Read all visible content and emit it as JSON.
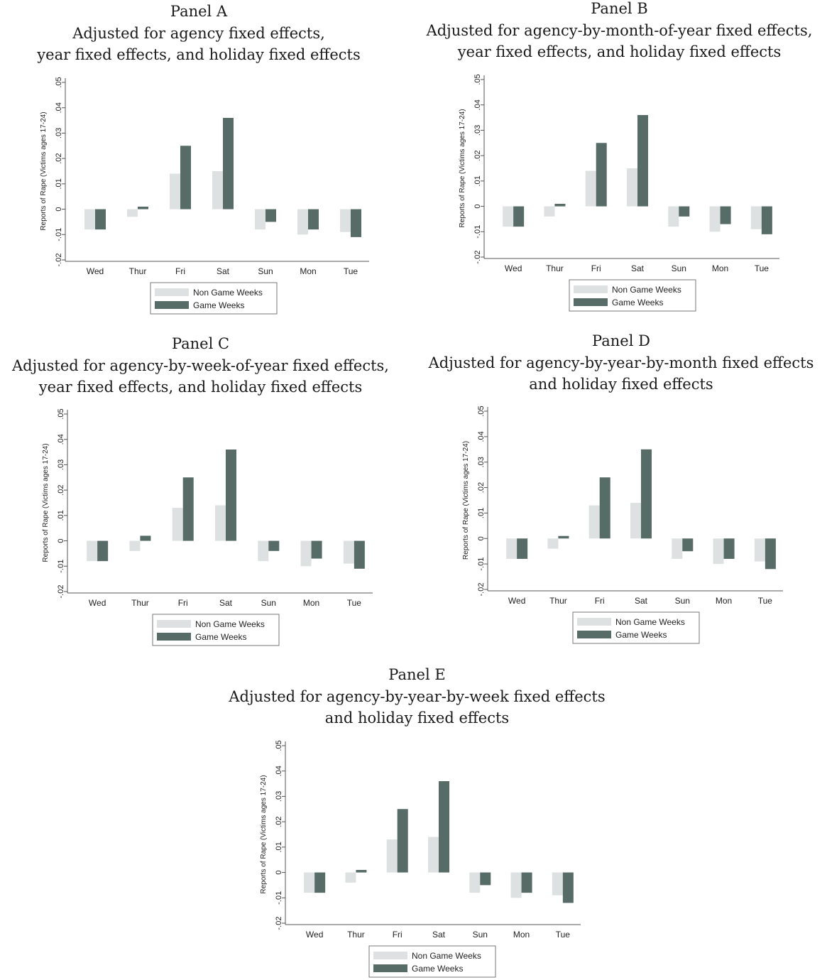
{
  "colors": {
    "non_game": "#dde1e1",
    "game": "#576b67",
    "axis": "#555555"
  },
  "chart_data": [
    {
      "type": "bar",
      "panel": "Panel A",
      "title_lines": [
        "Adjusted for agency fixed effects,",
        "year fixed effects, and holiday fixed effects"
      ],
      "ylabel": "Reports of Rape (Victims ages 17-24)",
      "ylim": [
        -0.02,
        0.05
      ],
      "yticks": [
        "-.02",
        "-.01",
        "0",
        ".01",
        ".02",
        ".03",
        ".04",
        ".05"
      ],
      "categories": [
        "Wed",
        "Thur",
        "Fri",
        "Sat",
        "Sun",
        "Mon",
        "Tue"
      ],
      "legend": "bottom-center",
      "series": [
        {
          "name": "Non Game Weeks",
          "values": [
            -0.008,
            -0.003,
            0.014,
            0.015,
            -0.008,
            -0.01,
            -0.009
          ]
        },
        {
          "name": "Game Weeks",
          "values": [
            -0.008,
            0.001,
            0.025,
            0.036,
            -0.005,
            -0.008,
            -0.011
          ]
        }
      ]
    },
    {
      "type": "bar",
      "panel": "Panel B",
      "title_lines": [
        "Adjusted for agency-by-month-of-year fixed effects,",
        "year fixed effects, and holiday fixed effects"
      ],
      "ylabel": "Reports of Rape (Victims ages 17-24)",
      "ylim": [
        -0.02,
        0.05
      ],
      "yticks": [
        "-.02",
        "-.01",
        "0",
        ".01",
        ".02",
        ".03",
        ".04",
        ".05"
      ],
      "categories": [
        "Wed",
        "Thur",
        "Fri",
        "Sat",
        "Sun",
        "Mon",
        "Tue"
      ],
      "legend": "bottom-center",
      "series": [
        {
          "name": "Non Game Weeks",
          "values": [
            -0.008,
            -0.004,
            0.014,
            0.015,
            -0.008,
            -0.01,
            -0.009
          ]
        },
        {
          "name": "Game Weeks",
          "values": [
            -0.008,
            0.001,
            0.025,
            0.036,
            -0.004,
            -0.007,
            -0.011
          ]
        }
      ]
    },
    {
      "type": "bar",
      "panel": "Panel C",
      "title_lines": [
        "Adjusted for agency-by-week-of-year fixed effects,",
        "year fixed effects, and holiday fixed effects"
      ],
      "ylabel": "Reports of Rape (Victims ages 17-24)",
      "ylim": [
        -0.02,
        0.05
      ],
      "yticks": [
        "-.02",
        "-.01",
        "0",
        ".01",
        ".02",
        ".03",
        ".04",
        ".05"
      ],
      "categories": [
        "Wed",
        "Thur",
        "Fri",
        "Sat",
        "Sun",
        "Mon",
        "Tue"
      ],
      "legend": "bottom-center",
      "series": [
        {
          "name": "Non Game Weeks",
          "values": [
            -0.008,
            -0.004,
            0.013,
            0.014,
            -0.008,
            -0.01,
            -0.009
          ]
        },
        {
          "name": "Game Weeks",
          "values": [
            -0.008,
            0.002,
            0.025,
            0.036,
            -0.004,
            -0.007,
            -0.011
          ]
        }
      ]
    },
    {
      "type": "bar",
      "panel": "Panel D",
      "title_lines": [
        "Adjusted for agency-by-year-by-month fixed effects",
        "and holiday fixed effects"
      ],
      "ylabel": "Reports of Rape (Victims ages 17-24)",
      "ylim": [
        -0.02,
        0.05
      ],
      "yticks": [
        "-.02",
        "-.01",
        "0",
        ".01",
        ".02",
        ".03",
        ".04",
        ".05"
      ],
      "categories": [
        "Wed",
        "Thur",
        "Fri",
        "Sat",
        "Sun",
        "Mon",
        "Tue"
      ],
      "legend": "bottom-center",
      "series": [
        {
          "name": "Non Game Weeks",
          "values": [
            -0.008,
            -0.004,
            0.013,
            0.014,
            -0.008,
            -0.01,
            -0.009
          ]
        },
        {
          "name": "Game Weeks",
          "values": [
            -0.008,
            0.001,
            0.024,
            0.035,
            -0.005,
            -0.008,
            -0.012
          ]
        }
      ]
    },
    {
      "type": "bar",
      "panel": "Panel E",
      "title_lines": [
        "Adjusted for agency-by-year-by-week fixed effects",
        "and holiday fixed effects"
      ],
      "ylabel": "Reports of Rape (Victims ages 17-24)",
      "ylim": [
        -0.02,
        0.05
      ],
      "yticks": [
        "-.02",
        "-.01",
        "0",
        ".01",
        ".02",
        ".03",
        ".04",
        ".05"
      ],
      "categories": [
        "Wed",
        "Thur",
        "Fri",
        "Sat",
        "Sun",
        "Mon",
        "Tue"
      ],
      "legend": "bottom-center",
      "series": [
        {
          "name": "Non Game Weeks",
          "values": [
            -0.008,
            -0.004,
            0.013,
            0.014,
            -0.008,
            -0.01,
            -0.009
          ]
        },
        {
          "name": "Game Weeks",
          "values": [
            -0.008,
            0.001,
            0.025,
            0.036,
            -0.005,
            -0.008,
            -0.012
          ]
        }
      ]
    }
  ]
}
